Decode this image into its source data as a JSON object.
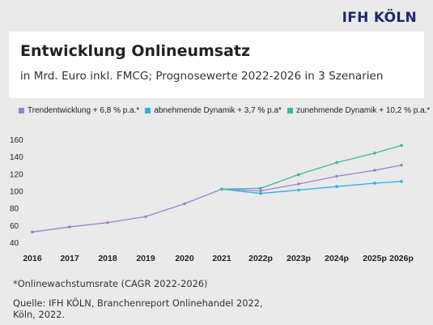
{
  "brand": "IFH KÖLN",
  "chart_data": {
    "type": "line",
    "title": "Entwicklung Onlineumsatz",
    "subtitle": "in Mrd. Euro inkl. FMCG; Prognosewerte 2022-2026 in 3 Szenarien",
    "categories": [
      "2016",
      "2017",
      "2018",
      "2019",
      "2020",
      "2021",
      "2022p",
      "2023p",
      "2024p",
      "2025p",
      "2026p"
    ],
    "ylim": [
      40,
      160
    ],
    "yticks": [
      40,
      60,
      80,
      100,
      120,
      140,
      160
    ],
    "grid": false,
    "legend_position": "top",
    "history": {
      "color": "#9b7fd4",
      "values": [
        52,
        58,
        63,
        70,
        85,
        102
      ]
    },
    "series": [
      {
        "name": "Trendentwicklung + 6,8 % p.a.*",
        "color": "#9b7fd4",
        "values": [
          null,
          null,
          null,
          null,
          null,
          102,
          100,
          108,
          117,
          124,
          130
        ]
      },
      {
        "name": "abnehmende Dynamik + 3,7 % p.a*",
        "color": "#2ab0e8",
        "values": [
          null,
          null,
          null,
          null,
          null,
          102,
          97,
          101,
          105,
          109,
          111
        ]
      },
      {
        "name": "zunehmende Dynamik + 10,2 % p.a.*",
        "color": "#3fb4a4",
        "values": [
          null,
          null,
          null,
          null,
          null,
          102,
          103,
          119,
          133,
          144,
          153
        ]
      }
    ]
  },
  "footnote": "*Onlinewachstumsrate (CAGR 2022-2026)",
  "source": "Quelle: IFH KÖLN, Branchenreport Onlinehandel 2022, Köln, 2022."
}
